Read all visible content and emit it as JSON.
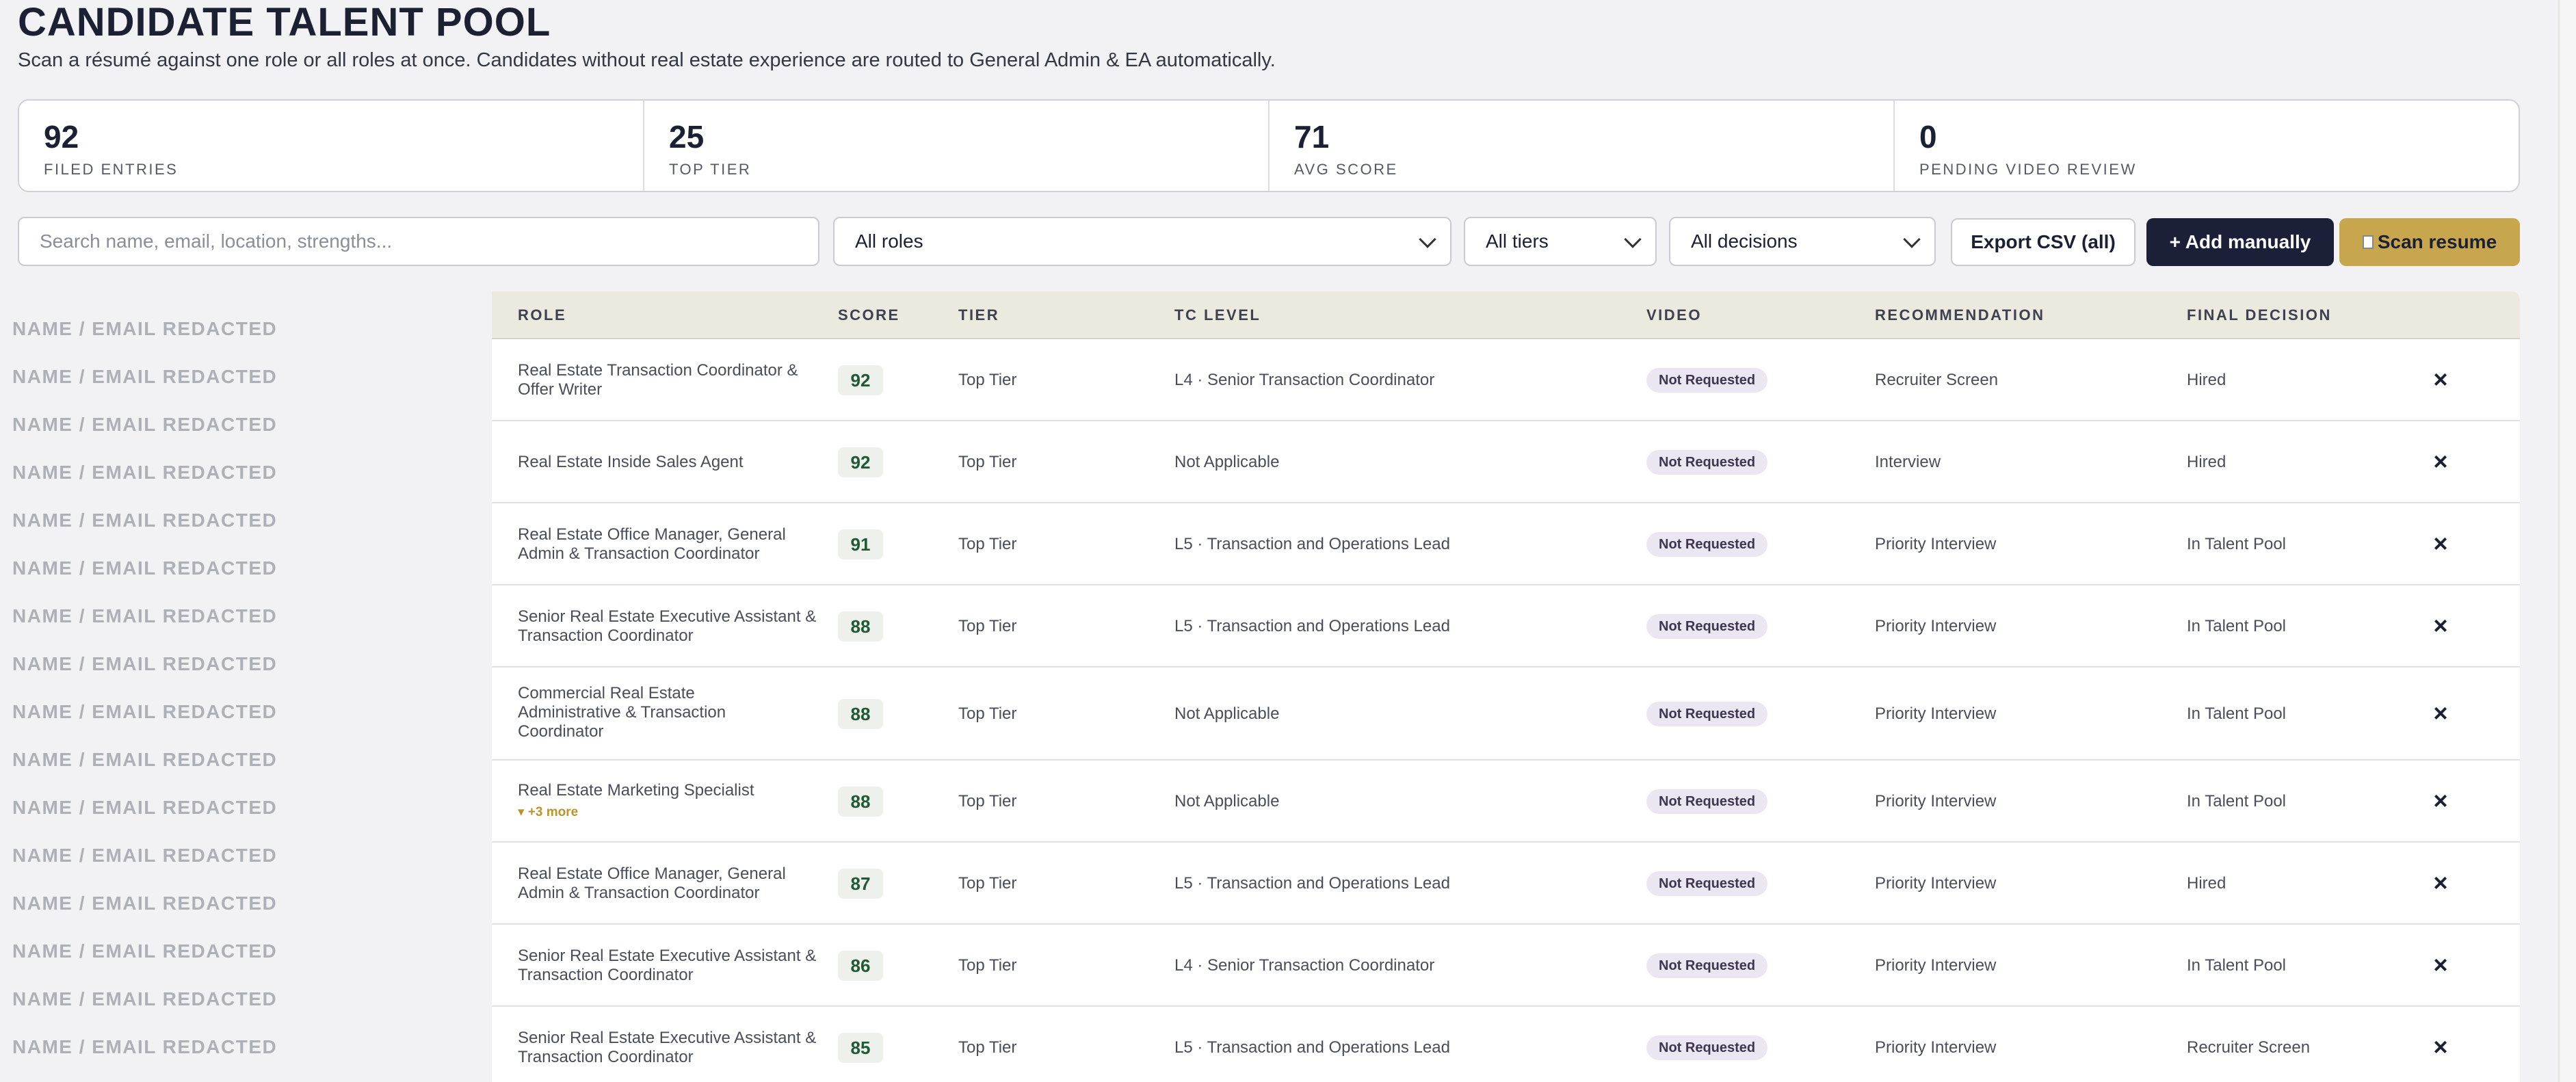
{
  "header": {
    "title": "CANDIDATE TALENT POOL",
    "subtitle": "Scan a résumé against one role or all roles at once. Candidates without real estate experience are routed to General Admin & EA automatically."
  },
  "stats": [
    {
      "value": "92",
      "label": "FILED ENTRIES"
    },
    {
      "value": "25",
      "label": "TOP TIER"
    },
    {
      "value": "71",
      "label": "AVG SCORE"
    },
    {
      "value": "0",
      "label": "PENDING VIDEO REVIEW"
    }
  ],
  "toolbar": {
    "search_placeholder": "Search name, email, location, strengths...",
    "roles_select": "All roles",
    "tiers_select": "All tiers",
    "decisions_select": "All decisions",
    "export_label": "Export CSV (all)",
    "add_label": "+ Add manually",
    "scan_label": "Scan resume"
  },
  "redacted_label": "NAME / EMAIL REDACTED",
  "table": {
    "columns": [
      "ROLE",
      "SCORE",
      "TIER",
      "TC LEVEL",
      "VIDEO",
      "RECOMMENDATION",
      "FINAL DECISION"
    ],
    "rows": [
      {
        "role": "Real Estate Transaction Coordinator & Offer Writer",
        "more": "",
        "score": "92",
        "tier": "Top Tier",
        "tc_level": "L4 · Senior Transaction Coordinator",
        "video": "Not Requested",
        "recommendation": "Recruiter Screen",
        "decision": "Hired"
      },
      {
        "role": "Real Estate Inside Sales Agent",
        "more": "",
        "score": "92",
        "tier": "Top Tier",
        "tc_level": "Not Applicable",
        "video": "Not Requested",
        "recommendation": "Interview",
        "decision": "Hired"
      },
      {
        "role": "Real Estate Office Manager, General Admin & Transaction Coordinator",
        "more": "",
        "score": "91",
        "tier": "Top Tier",
        "tc_level": "L5 · Transaction and Operations Lead",
        "video": "Not Requested",
        "recommendation": "Priority Interview",
        "decision": "In Talent Pool"
      },
      {
        "role": "Senior Real Estate Executive Assistant & Transaction Coordinator",
        "more": "",
        "score": "88",
        "tier": "Top Tier",
        "tc_level": "L5 · Transaction and Operations Lead",
        "video": "Not Requested",
        "recommendation": "Priority Interview",
        "decision": "In Talent Pool"
      },
      {
        "role": "Commercial Real Estate Administrative & Transaction Coordinator",
        "more": "",
        "score": "88",
        "tier": "Top Tier",
        "tc_level": "Not Applicable",
        "video": "Not Requested",
        "recommendation": "Priority Interview",
        "decision": "In Talent Pool"
      },
      {
        "role": "Real Estate Marketing Specialist",
        "more": "▾ +3 more",
        "score": "88",
        "tier": "Top Tier",
        "tc_level": "Not Applicable",
        "video": "Not Requested",
        "recommendation": "Priority Interview",
        "decision": "In Talent Pool"
      },
      {
        "role": "Real Estate Office Manager, General Admin & Transaction Coordinator",
        "more": "",
        "score": "87",
        "tier": "Top Tier",
        "tc_level": "L5 · Transaction and Operations Lead",
        "video": "Not Requested",
        "recommendation": "Priority Interview",
        "decision": "Hired"
      },
      {
        "role": "Senior Real Estate Executive Assistant & Transaction Coordinator",
        "more": "",
        "score": "86",
        "tier": "Top Tier",
        "tc_level": "L4 · Senior Transaction Coordinator",
        "video": "Not Requested",
        "recommendation": "Priority Interview",
        "decision": "In Talent Pool"
      },
      {
        "role": "Senior Real Estate Executive Assistant & Transaction Coordinator",
        "more": "",
        "score": "85",
        "tier": "Top Tier",
        "tc_level": "L5 · Transaction and Operations Lead",
        "video": "Not Requested",
        "recommendation": "Priority Interview",
        "decision": "Recruiter Screen"
      }
    ]
  },
  "colors": {
    "accent_dark": "#1b2038",
    "accent_gold": "#c7a64e",
    "score_green": "#1f5a34"
  }
}
